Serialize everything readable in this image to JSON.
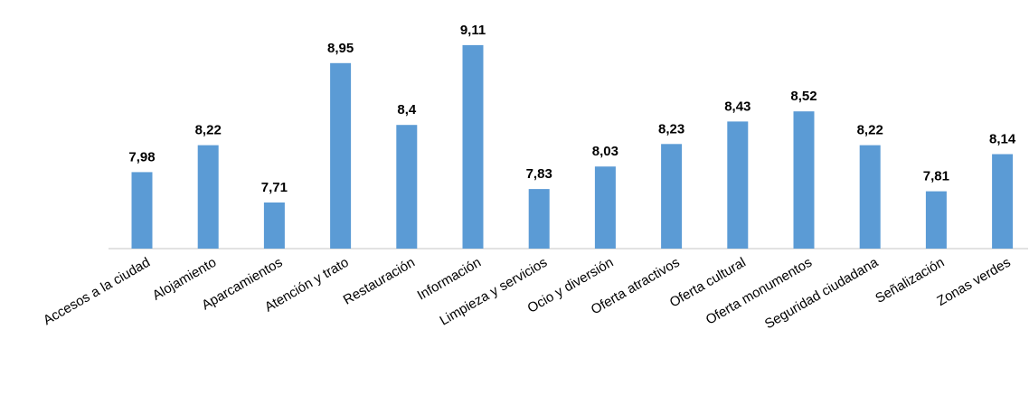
{
  "chart_data": {
    "type": "bar",
    "categories": [
      "Accesos a la ciudad",
      "Alojamiento",
      "Aparcamientos",
      "Atención y trato",
      "Restauración",
      "Información",
      "Limpieza y servicios",
      "Ocio y diversión",
      "Oferta atractivos",
      "Oferta cultural",
      "Oferta monumentos",
      "Seguridad ciudadana",
      "Señalización",
      "Zonas verdes"
    ],
    "values": [
      7.98,
      8.22,
      7.71,
      8.95,
      8.4,
      9.11,
      7.83,
      8.03,
      8.23,
      8.43,
      8.52,
      8.22,
      7.81,
      8.14
    ],
    "value_labels": [
      "7,98",
      "8,22",
      "7,71",
      "8,95",
      "8,4",
      "9,11",
      "7,83",
      "8,03",
      "8,23",
      "8,43",
      "8,52",
      "8,22",
      "7,81",
      "8,14"
    ],
    "title": "",
    "xlabel": "",
    "ylabel": "",
    "ylim": [
      7.3,
      9.35
    ],
    "grid": false,
    "legend": "none",
    "colors": {
      "bar": "#5b9bd5",
      "axis": "#d9d9d9"
    }
  }
}
